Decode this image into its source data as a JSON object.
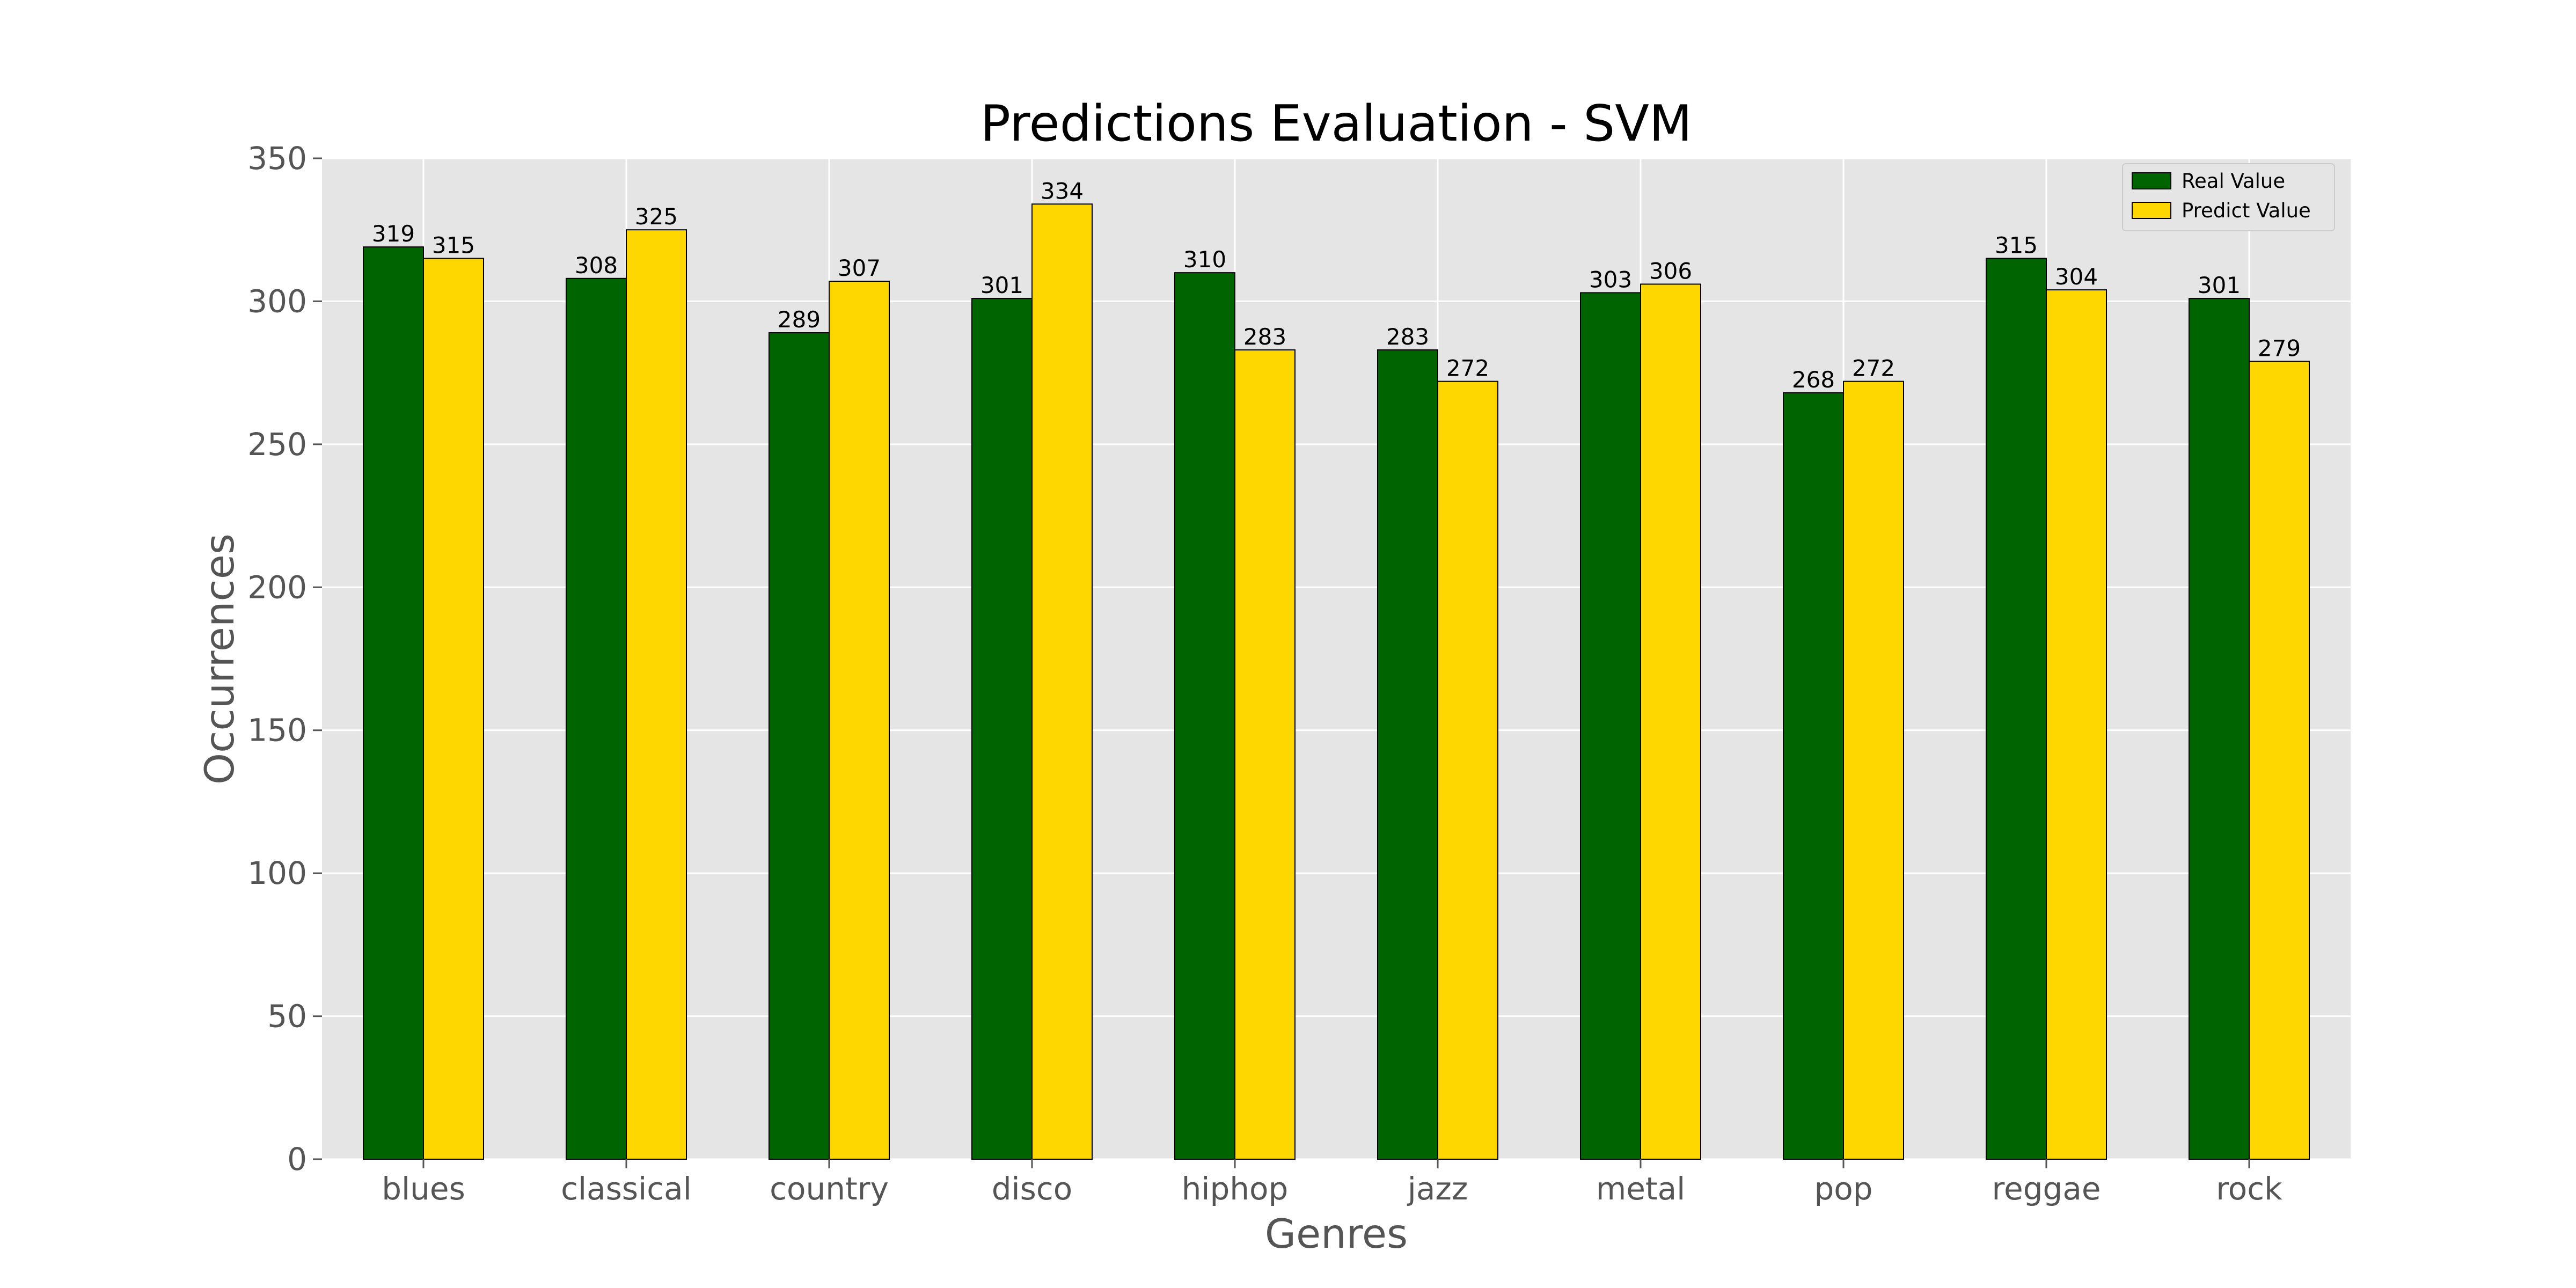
{
  "chart_data": {
    "type": "bar",
    "title": "Predictions Evaluation - SVM",
    "xlabel": "Genres",
    "ylabel": "Occurrences",
    "categories": [
      "blues",
      "classical",
      "country",
      "disco",
      "hiphop",
      "jazz",
      "metal",
      "pop",
      "reggae",
      "rock"
    ],
    "series": [
      {
        "name": "Real Value",
        "color": "#006400",
        "values": [
          319,
          308,
          289,
          301,
          310,
          283,
          303,
          268,
          315,
          301
        ]
      },
      {
        "name": "Predict Value",
        "color": "#FFD700",
        "values": [
          315,
          325,
          307,
          334,
          283,
          272,
          306,
          272,
          304,
          279
        ]
      }
    ],
    "ylim": [
      0,
      350
    ],
    "yticks": [
      0,
      50,
      100,
      150,
      200,
      250,
      300,
      350
    ],
    "grid": true,
    "legend_position": "top-right",
    "data_labels": true
  }
}
